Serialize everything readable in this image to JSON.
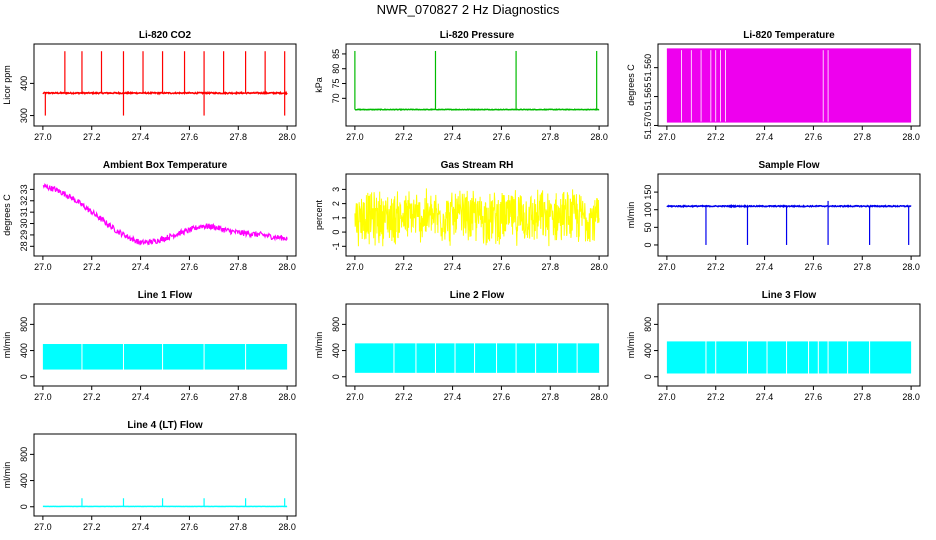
{
  "title": "NWR_070827  2 Hz Diagnostics",
  "chart_data": [
    {
      "type": "line",
      "title": "Li-820 CO2",
      "ylabel": "Licor ppm",
      "color": "#ff0000",
      "xlim": [
        26.98,
        28.02
      ],
      "ylim": [
        280,
        510
      ],
      "xticks": [
        "27.0",
        "27.2",
        "27.4",
        "27.6",
        "27.8",
        "28.0"
      ],
      "yticks": [
        "300",
        "400"
      ],
      "yvals": [
        300,
        400
      ],
      "baseline": 370,
      "noise": 4,
      "kind": "spikes",
      "spikes_up": [
        27.09,
        27.16,
        27.24,
        27.33,
        27.41,
        27.49,
        27.58,
        27.66,
        27.74,
        27.83,
        27.91,
        27.99
      ],
      "spikes_down": [
        27.01,
        27.33,
        27.66,
        27.99
      ],
      "spike_top": 500,
      "spike_bottom": 300
    },
    {
      "type": "line",
      "title": "Li-820 Pressure",
      "ylabel": "kPa",
      "color": "#00bb00",
      "xlim": [
        26.98,
        28.02
      ],
      "ylim": [
        62,
        87
      ],
      "xticks": [
        "27.0",
        "27.2",
        "27.4",
        "27.6",
        "27.8",
        "28.0"
      ],
      "yticks": [
        "70",
        "75",
        "80",
        "85"
      ],
      "yvals": [
        70,
        75,
        80,
        85
      ],
      "baseline": 66.2,
      "noise": 0.2,
      "kind": "spikes",
      "spikes_up": [
        27.0,
        27.33,
        27.66,
        27.99
      ],
      "spikes_down": [],
      "spike_top": 86,
      "spike_bottom": 66
    },
    {
      "type": "line",
      "title": "Li-820 Temperature",
      "ylabel": "degrees C",
      "color": "#ee00ee",
      "xlim": [
        26.98,
        28.02
      ],
      "ylim": [
        51.5694,
        51.5566
      ],
      "xticks": [
        "27.0",
        "27.2",
        "27.4",
        "27.6",
        "27.8",
        "28.0"
      ],
      "yticks": [
        "51.570",
        "51.565",
        "51.560"
      ],
      "yvals": [
        51.57,
        51.565,
        51.56
      ],
      "baseline": 51.557,
      "kind": "block",
      "gaps": [
        27.06,
        27.1,
        27.14,
        27.18,
        27.2,
        27.22,
        27.24,
        27.64,
        27.66
      ],
      "block_low": 51.5695,
      "block_high": 51.5568
    },
    {
      "type": "line",
      "title": "Ambient Box Temperature",
      "ylabel": "degrees C",
      "color": "#ff00ff",
      "xlim": [
        26.98,
        28.02
      ],
      "ylim": [
        27.5,
        34
      ],
      "xticks": [
        "27.0",
        "27.2",
        "27.4",
        "27.6",
        "27.8",
        "28.0"
      ],
      "yticks": [
        "28",
        "29",
        "30",
        "31",
        "32",
        "33"
      ],
      "yvals": [
        28,
        29,
        30,
        31,
        32,
        33
      ],
      "kind": "curve",
      "curve_x": [
        27.0,
        27.05,
        27.1,
        27.15,
        27.2,
        27.25,
        27.3,
        27.35,
        27.4,
        27.45,
        27.5,
        27.55,
        27.6,
        27.65,
        27.7,
        27.75,
        27.8,
        27.85,
        27.9,
        27.95,
        28.0
      ],
      "curve_y": [
        33.3,
        33.0,
        32.5,
        31.8,
        31.0,
        30.2,
        29.4,
        28.8,
        28.3,
        28.4,
        28.7,
        29.1,
        29.4,
        29.8,
        29.7,
        29.4,
        29.2,
        29.1,
        29.0,
        28.8,
        28.7
      ],
      "noise": 0.5
    },
    {
      "type": "line",
      "title": "Gas Stream RH",
      "ylabel": "percent",
      "color": "#ffff00",
      "xlim": [
        26.98,
        28.02
      ],
      "ylim": [
        -1.4,
        3.8
      ],
      "xticks": [
        "27.0",
        "27.2",
        "27.4",
        "27.6",
        "27.8",
        "28.0"
      ],
      "yticks": [
        "-1",
        "0",
        "1",
        "2",
        "3"
      ],
      "yvals": [
        -1,
        0,
        1,
        2,
        3
      ],
      "kind": "band",
      "band_low": -1.1,
      "band_high": 3.2
    },
    {
      "type": "line",
      "title": "Sample Flow",
      "ylabel": "ml/min",
      "color": "#0000ee",
      "xlim": [
        26.98,
        28.02
      ],
      "ylim": [
        -20,
        190
      ],
      "xticks": [
        "27.0",
        "27.2",
        "27.4",
        "27.6",
        "27.8",
        "28.0"
      ],
      "yticks": [
        "0",
        "50",
        "100",
        "150"
      ],
      "yvals": [
        0,
        50,
        100,
        150
      ],
      "baseline": 110,
      "noise": 3,
      "kind": "spikes",
      "spikes_up": [
        27.66
      ],
      "spikes_down": [
        27.16,
        27.33,
        27.49,
        27.66,
        27.83,
        27.99
      ],
      "spike_top": 125,
      "spike_bottom": 0
    },
    {
      "type": "line",
      "title": "Line 1 Flow",
      "ylabel": "ml/min",
      "color": "#00ffff",
      "xlim": [
        26.98,
        28.02
      ],
      "ylim": [
        -80,
        1050
      ],
      "xticks": [
        "27.0",
        "27.2",
        "27.4",
        "27.6",
        "27.8",
        "28.0"
      ],
      "yticks": [
        "0",
        "400",
        "800"
      ],
      "yvals": [
        0,
        400,
        800
      ],
      "kind": "band",
      "band_low": 110,
      "band_high": 500,
      "gaps": [
        27.16,
        27.33,
        27.49,
        27.66,
        27.83
      ]
    },
    {
      "type": "line",
      "title": "Line 2 Flow",
      "ylabel": "ml/min",
      "color": "#00ffff",
      "xlim": [
        26.98,
        28.02
      ],
      "ylim": [
        -80,
        1050
      ],
      "xticks": [
        "27.0",
        "27.2",
        "27.4",
        "27.6",
        "27.8",
        "28.0"
      ],
      "yticks": [
        "0",
        "400",
        "800"
      ],
      "yvals": [
        0,
        400,
        800
      ],
      "kind": "band",
      "band_low": 60,
      "band_high": 510,
      "gaps": [
        27.16,
        27.25,
        27.33,
        27.41,
        27.49,
        27.58,
        27.66,
        27.74,
        27.83,
        27.91
      ]
    },
    {
      "type": "line",
      "title": "Line 3 Flow",
      "ylabel": "ml/min",
      "color": "#00ffff",
      "xlim": [
        26.98,
        28.02
      ],
      "ylim": [
        -80,
        1050
      ],
      "xticks": [
        "27.0",
        "27.2",
        "27.4",
        "27.6",
        "27.8",
        "28.0"
      ],
      "yticks": [
        "0",
        "400",
        "800"
      ],
      "yvals": [
        0,
        400,
        800
      ],
      "kind": "band",
      "band_low": 50,
      "band_high": 540,
      "gaps": [
        27.16,
        27.2,
        27.33,
        27.41,
        27.49,
        27.58,
        27.62,
        27.66,
        27.74,
        27.83
      ]
    },
    {
      "type": "line",
      "title": "Line 4 (LT) Flow",
      "ylabel": "ml/min",
      "color": "#00ffff",
      "xlim": [
        26.98,
        28.02
      ],
      "ylim": [
        -80,
        1050
      ],
      "xticks": [
        "27.0",
        "27.2",
        "27.4",
        "27.6",
        "27.8",
        "28.0"
      ],
      "yticks": [
        "0",
        "400",
        "800"
      ],
      "yvals": [
        0,
        400,
        800
      ],
      "baseline": 5,
      "noise": 2,
      "kind": "spikes",
      "spikes_up": [
        27.16,
        27.33,
        27.49,
        27.66,
        27.83,
        27.99
      ],
      "spikes_down": [],
      "spike_top": 130,
      "spike_bottom": 5
    }
  ]
}
